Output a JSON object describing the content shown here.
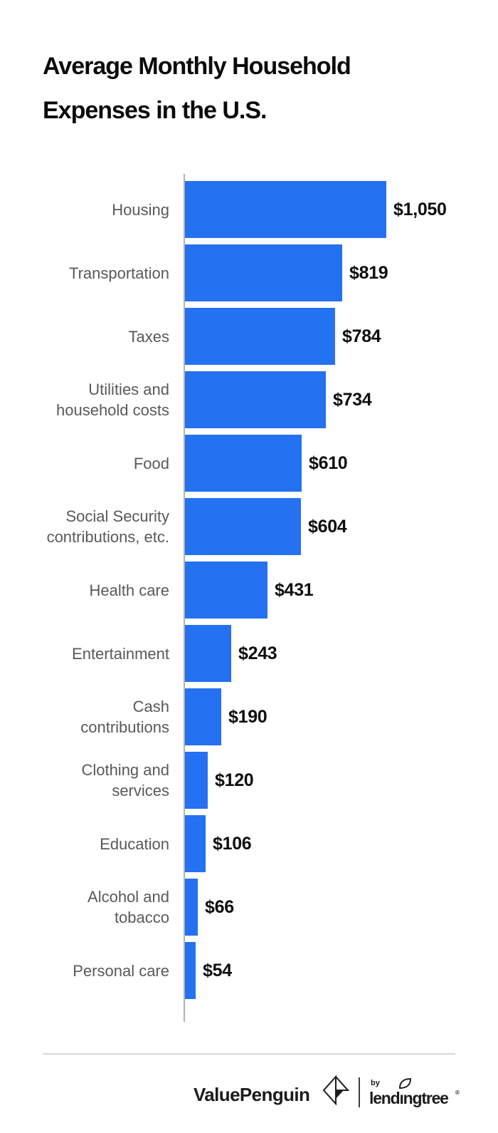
{
  "title": {
    "line1": "Average Monthly Household",
    "line2": "Expenses in the U.S."
  },
  "chart_data": {
    "type": "bar",
    "orientation": "horizontal",
    "title": "Average Monthly Household Expenses in the U.S.",
    "categories": [
      "Housing",
      "Transportation",
      "Taxes",
      "Utilities and\nhousehold costs",
      "Food",
      "Social Security\ncontributions, etc.",
      "Health care",
      "Entertainment",
      "Cash\ncontributions",
      "Clothing and\nservices",
      "Education",
      "Alcohol and\ntobacco",
      "Personal care"
    ],
    "values": [
      1050,
      819,
      784,
      734,
      610,
      604,
      431,
      243,
      190,
      120,
      106,
      66,
      54
    ],
    "value_labels": [
      "$1,050",
      "$819",
      "$784",
      "$734",
      "$610",
      "$604",
      "$431",
      "$243",
      "$190",
      "$120",
      "$106",
      "$66",
      "$54"
    ],
    "xlim": [
      0,
      1050
    ],
    "grid": "off",
    "legend": "none",
    "bar_color": "#2471F2",
    "axis_color": "#B3B2AE",
    "category_label_color": "#58595B",
    "value_label_color": "#0E0E0E"
  },
  "footer": {
    "brand_wordmark": "ValuePenguin",
    "by_label": "by",
    "partner_wordmark": "lendingtree",
    "trademark_mark": "®",
    "logo_color": "#1C1C1C",
    "divider_color": "#D8D8D8",
    "icons": {
      "penguin_mark": "valuepenguin-origami-penguin-icon",
      "leaf": "leaf-icon"
    }
  }
}
